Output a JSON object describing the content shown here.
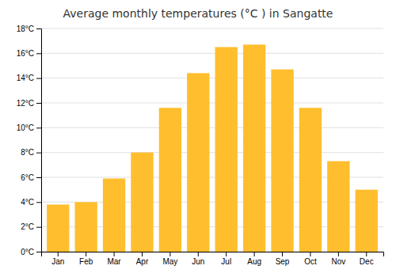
{
  "chart_data": {
    "type": "bar",
    "title": "Average monthly temperatures (°C ) in Sangatte",
    "categories": [
      "Jan",
      "Feb",
      "Mar",
      "Apr",
      "May",
      "Jun",
      "Jul",
      "Aug",
      "Sep",
      "Oct",
      "Nov",
      "Dec"
    ],
    "values": [
      3.8,
      4.0,
      5.9,
      8.0,
      11.6,
      14.4,
      16.5,
      16.7,
      14.7,
      11.6,
      7.3,
      5.0
    ],
    "color": "#FFBE2D",
    "ylim": [
      0,
      18
    ],
    "yticks": [
      {
        "value": 0,
        "label": "0°C"
      },
      {
        "value": 2,
        "label": "2°C"
      },
      {
        "value": 4,
        "label": "4°C"
      },
      {
        "value": 6,
        "label": "6°C"
      },
      {
        "value": 8,
        "label": "8°C"
      },
      {
        "value": 10,
        "label": "10°C"
      },
      {
        "value": 12,
        "label": "12°C"
      },
      {
        "value": 14,
        "label": "14°C"
      },
      {
        "value": 16,
        "label": "16°C"
      },
      {
        "value": 18,
        "label": "18°C"
      }
    ],
    "grid": true
  }
}
